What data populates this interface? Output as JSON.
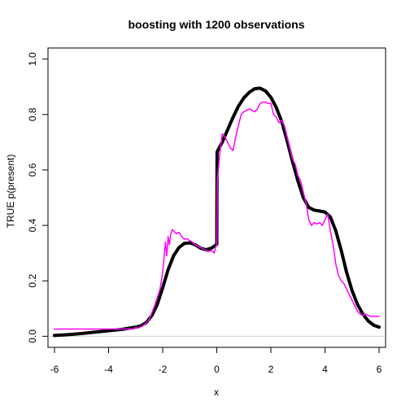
{
  "chart_data": {
    "type": "line",
    "title": "boosting with 1200 observations",
    "xlabel": "x",
    "ylabel": "TRUE p(present)",
    "xlim": [
      -6.24,
      6.24
    ],
    "ylim": [
      -0.04,
      1.04
    ],
    "x_ticks": [
      -6,
      -4,
      -2,
      0,
      2,
      4,
      6
    ],
    "x_tick_labels": [
      "-6",
      "-4",
      "-2",
      "0",
      "2",
      "4",
      "6"
    ],
    "y_ticks": [
      0.0,
      0.2,
      0.4,
      0.6,
      0.8,
      1.0
    ],
    "y_tick_labels": [
      "0.0",
      "0.2",
      "0.4",
      "0.6",
      "0.8",
      "1.0"
    ],
    "reference_line": {
      "y": 0,
      "color": "#d3d3d3"
    },
    "grid": false,
    "legend": "none",
    "series": [
      {
        "color": "#000000",
        "style": "thick",
        "x": [
          -6,
          -5.5,
          -5,
          -4.5,
          -4,
          -3.5,
          -3,
          -2.8,
          -2.6,
          -2.4,
          -2.2,
          -2,
          -1.8,
          -1.6,
          -1.4,
          -1.2,
          -1,
          -0.8,
          -0.6,
          -0.4,
          -0.2,
          -0.05,
          0,
          0.01,
          0.2,
          0.4,
          0.6,
          0.8,
          1.0,
          1.2,
          1.4,
          1.6,
          1.8,
          2.0,
          2.2,
          2.4,
          2.6,
          2.8,
          3.0,
          3.2,
          3.4,
          3.6,
          3.8,
          4.0,
          4.2,
          4.4,
          4.6,
          4.8,
          5.0,
          5.2,
          5.4,
          5.6,
          5.8,
          6.0
        ],
        "y": [
          0.003,
          0.006,
          0.01,
          0.015,
          0.02,
          0.025,
          0.033,
          0.038,
          0.05,
          0.075,
          0.115,
          0.175,
          0.24,
          0.29,
          0.32,
          0.335,
          0.337,
          0.33,
          0.318,
          0.312,
          0.318,
          0.328,
          0.332,
          0.665,
          0.7,
          0.745,
          0.79,
          0.83,
          0.86,
          0.88,
          0.893,
          0.895,
          0.885,
          0.862,
          0.825,
          0.775,
          0.705,
          0.63,
          0.56,
          0.5,
          0.465,
          0.455,
          0.452,
          0.448,
          0.43,
          0.38,
          0.31,
          0.23,
          0.165,
          0.115,
          0.08,
          0.055,
          0.04,
          0.033
        ]
      },
      {
        "color": "#ff00ff",
        "style": "thin",
        "x": [
          -6,
          -3.1,
          -3.05,
          -2.9,
          -2.7,
          -2.5,
          -2.4,
          -2.3,
          -2.2,
          -2.1,
          -2.0,
          -1.9,
          -1.85,
          -1.8,
          -1.75,
          -1.7,
          -1.65,
          -1.6,
          -1.5,
          -1.4,
          -1.3,
          -1.2,
          -1.1,
          -1.0,
          -0.9,
          -0.8,
          -0.7,
          -0.6,
          -0.5,
          -0.4,
          -0.3,
          -0.2,
          -0.1,
          -0.05,
          0,
          0.02,
          0.1,
          0.2,
          0.3,
          0.4,
          0.5,
          0.6,
          0.7,
          0.8,
          0.9,
          1.0,
          1.1,
          1.2,
          1.3,
          1.4,
          1.5,
          1.6,
          1.7,
          1.8,
          1.9,
          2.0,
          2.1,
          2.2,
          2.3,
          2.4,
          2.5,
          2.6,
          2.7,
          2.8,
          2.9,
          3.0,
          3.1,
          3.2,
          3.3,
          3.4,
          3.5,
          3.6,
          3.7,
          3.8,
          3.9,
          4.0,
          4.1,
          4.2,
          4.3,
          4.4,
          4.5,
          4.6,
          4.7,
          4.8,
          4.9,
          5.0,
          5.1,
          5.2,
          5.3,
          5.4,
          5.5,
          5.6,
          5.7,
          5.8,
          5.9,
          6.0
        ],
        "y": [
          0.026,
          0.026,
          0.03,
          0.03,
          0.04,
          0.06,
          0.085,
          0.11,
          0.14,
          0.17,
          0.23,
          0.34,
          0.29,
          0.36,
          0.33,
          0.37,
          0.385,
          0.38,
          0.37,
          0.375,
          0.36,
          0.35,
          0.352,
          0.345,
          0.34,
          0.33,
          0.325,
          0.32,
          0.315,
          0.31,
          0.305,
          0.31,
          0.3,
          0.32,
          0.33,
          0.56,
          0.65,
          0.73,
          0.72,
          0.7,
          0.68,
          0.67,
          0.72,
          0.76,
          0.8,
          0.81,
          0.815,
          0.82,
          0.815,
          0.81,
          0.82,
          0.84,
          0.845,
          0.845,
          0.84,
          0.84,
          0.8,
          0.79,
          0.77,
          0.78,
          0.76,
          0.72,
          0.68,
          0.64,
          0.62,
          0.58,
          0.56,
          0.52,
          0.48,
          0.42,
          0.4,
          0.41,
          0.405,
          0.41,
          0.4,
          0.42,
          0.44,
          0.38,
          0.33,
          0.26,
          0.22,
          0.2,
          0.19,
          0.17,
          0.15,
          0.13,
          0.11,
          0.09,
          0.08,
          0.075,
          0.08,
          0.075,
          0.072,
          0.072,
          0.072,
          0.072
        ]
      }
    ]
  }
}
